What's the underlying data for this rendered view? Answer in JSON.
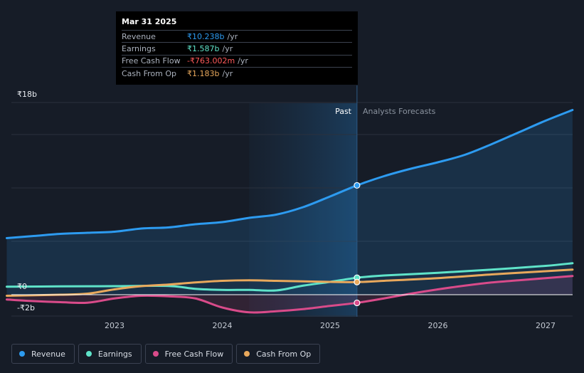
{
  "tooltip": {
    "date": "Mar 31 2025",
    "rows": [
      {
        "label": "Revenue",
        "value": "₹10.238b",
        "unit": "/yr",
        "color": "#2d9bf0"
      },
      {
        "label": "Earnings",
        "value": "₹1.587b",
        "unit": "/yr",
        "color": "#5fe3c9"
      },
      {
        "label": "Free Cash Flow",
        "value": "-₹763.002m",
        "unit": "/yr",
        "color": "#ff5a5a"
      },
      {
        "label": "Cash From Op",
        "value": "₹1.183b",
        "unit": "/yr",
        "color": "#e8a85c"
      }
    ]
  },
  "legend": [
    {
      "label": "Revenue",
      "color": "#2d9bf0"
    },
    {
      "label": "Earnings",
      "color": "#5fe3c9"
    },
    {
      "label": "Free Cash Flow",
      "color": "#d94b8a"
    },
    {
      "label": "Cash From Op",
      "color": "#e8a85c"
    }
  ],
  "chart_data": {
    "type": "line",
    "title": "",
    "xlabel": "",
    "ylabel": "",
    "currency": "₹",
    "units": "billions",
    "ylim": [
      -2,
      18
    ],
    "y_tick_labels": [
      {
        "value": 18,
        "label": "₹18b"
      },
      {
        "value": 0,
        "label": "₹0"
      },
      {
        "value": -2,
        "label": "-₹2b"
      }
    ],
    "x_ticks": [
      {
        "value": 2023.0,
        "label": "2023"
      },
      {
        "value": 2024.0,
        "label": "2024"
      },
      {
        "value": 2025.0,
        "label": "2025"
      },
      {
        "value": 2026.0,
        "label": "2026"
      },
      {
        "value": 2027.0,
        "label": "2027"
      }
    ],
    "xlim": [
      2021.8,
      2027.25
    ],
    "past_label": "Past",
    "forecast_label": "Analysts Forecasts",
    "past_split": 2025.25,
    "highlight_start": 2024.25,
    "series": [
      {
        "name": "Revenue",
        "color": "#2d9bf0",
        "fill": true,
        "points": [
          [
            2022.0,
            5.3
          ],
          [
            2022.25,
            5.5
          ],
          [
            2022.5,
            5.7
          ],
          [
            2022.75,
            5.8
          ],
          [
            2023.0,
            5.9
          ],
          [
            2023.25,
            6.2
          ],
          [
            2023.5,
            6.3
          ],
          [
            2023.75,
            6.6
          ],
          [
            2024.0,
            6.8
          ],
          [
            2024.25,
            7.2
          ],
          [
            2024.5,
            7.5
          ],
          [
            2024.75,
            8.2
          ],
          [
            2025.0,
            9.2
          ],
          [
            2025.25,
            10.238
          ],
          [
            2025.5,
            11.1
          ],
          [
            2025.75,
            11.8
          ],
          [
            2026.0,
            12.4
          ],
          [
            2026.25,
            13.1
          ],
          [
            2026.5,
            14.1
          ],
          [
            2026.75,
            15.2
          ],
          [
            2027.0,
            16.3
          ],
          [
            2027.25,
            17.3
          ]
        ]
      },
      {
        "name": "Earnings",
        "color": "#5fe3c9",
        "fill": false,
        "points": [
          [
            2022.0,
            0.75
          ],
          [
            2022.5,
            0.78
          ],
          [
            2023.0,
            0.8
          ],
          [
            2023.5,
            0.82
          ],
          [
            2023.75,
            0.55
          ],
          [
            2024.0,
            0.45
          ],
          [
            2024.25,
            0.45
          ],
          [
            2024.5,
            0.4
          ],
          [
            2024.75,
            0.85
          ],
          [
            2025.0,
            1.2
          ],
          [
            2025.25,
            1.587
          ],
          [
            2025.5,
            1.8
          ],
          [
            2026.0,
            2.05
          ],
          [
            2026.5,
            2.35
          ],
          [
            2027.0,
            2.7
          ],
          [
            2027.25,
            2.95
          ]
        ]
      },
      {
        "name": "Free Cash Flow",
        "color": "#d94b8a",
        "fill": true,
        "points": [
          [
            2022.0,
            -0.45
          ],
          [
            2022.25,
            -0.6
          ],
          [
            2022.5,
            -0.7
          ],
          [
            2022.75,
            -0.75
          ],
          [
            2023.0,
            -0.35
          ],
          [
            2023.25,
            -0.1
          ],
          [
            2023.5,
            -0.15
          ],
          [
            2023.75,
            -0.35
          ],
          [
            2024.0,
            -1.2
          ],
          [
            2024.25,
            -1.65
          ],
          [
            2024.5,
            -1.55
          ],
          [
            2024.75,
            -1.35
          ],
          [
            2025.0,
            -1.05
          ],
          [
            2025.25,
            -0.763
          ],
          [
            2025.5,
            -0.35
          ],
          [
            2025.75,
            0.1
          ],
          [
            2026.0,
            0.5
          ],
          [
            2026.25,
            0.85
          ],
          [
            2026.5,
            1.15
          ],
          [
            2026.75,
            1.35
          ],
          [
            2027.0,
            1.55
          ],
          [
            2027.25,
            1.75
          ]
        ]
      },
      {
        "name": "Cash From Op",
        "color": "#e8a85c",
        "fill": false,
        "points": [
          [
            2022.0,
            -0.1
          ],
          [
            2022.5,
            0.0
          ],
          [
            2022.75,
            0.1
          ],
          [
            2023.0,
            0.5
          ],
          [
            2023.25,
            0.8
          ],
          [
            2023.5,
            0.95
          ],
          [
            2023.75,
            1.15
          ],
          [
            2024.0,
            1.3
          ],
          [
            2024.25,
            1.35
          ],
          [
            2024.5,
            1.3
          ],
          [
            2024.75,
            1.25
          ],
          [
            2025.0,
            1.2
          ],
          [
            2025.25,
            1.183
          ],
          [
            2025.5,
            1.3
          ],
          [
            2026.0,
            1.55
          ],
          [
            2026.5,
            1.9
          ],
          [
            2027.0,
            2.2
          ],
          [
            2027.25,
            2.35
          ]
        ]
      }
    ],
    "markers": [
      {
        "series": "Revenue",
        "x": 2025.25,
        "y": 10.238
      },
      {
        "series": "Earnings",
        "x": 2025.25,
        "y": 1.587
      },
      {
        "series": "Cash From Op",
        "x": 2025.25,
        "y": 1.183
      },
      {
        "series": "Free Cash Flow",
        "x": 2025.25,
        "y": -0.763
      }
    ]
  }
}
